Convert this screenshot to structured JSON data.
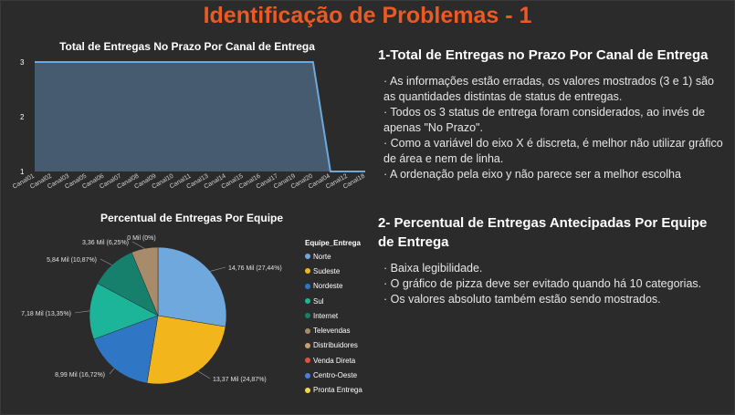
{
  "header": {
    "title": "Identificação de Problemas - 1"
  },
  "charts": {
    "area_title": "Total de Entregas No Prazo Por Canal de Entrega",
    "pie_title": "Percentual de Entregas Por Equipe"
  },
  "chart_data": [
    {
      "type": "area",
      "title": "Total de Entregas No Prazo Por Canal de Entrega",
      "categories": [
        "Canal01",
        "Canal02",
        "Canal03",
        "Canal05",
        "Canal06",
        "Canal07",
        "Canal08",
        "Canal09",
        "Canal10",
        "Canal11",
        "Canal13",
        "Canal14",
        "Canal15",
        "Canal16",
        "Canal17",
        "Canal19",
        "Canal20",
        "Canal04",
        "Canal12",
        "Canal18"
      ],
      "values": [
        3,
        3,
        3,
        3,
        3,
        3,
        3,
        3,
        3,
        3,
        3,
        3,
        3,
        3,
        3,
        3,
        3,
        1,
        1,
        1
      ],
      "yticks": [
        1,
        2,
        3
      ],
      "ylim": [
        1,
        3
      ],
      "color": "#4a6178"
    },
    {
      "type": "pie",
      "title": "Percentual de Entregas Por Equipe",
      "legend_title": "Equipe_Entrega",
      "slices": [
        {
          "name": "Norte",
          "value": 14.76,
          "label": "14,76 Mil (27,44%)",
          "color": "#6fa8dc"
        },
        {
          "name": "Sudeste",
          "value": 13.37,
          "label": "13,37 Mil (24,87%)",
          "color": "#f2b51b"
        },
        {
          "name": "Nordeste",
          "value": 8.99,
          "label": "8,99 Mil (16,72%)",
          "color": "#2f77c4"
        },
        {
          "name": "Sul",
          "value": 7.18,
          "label": "7,18 Mil (13,35%)",
          "color": "#1cb59a"
        },
        {
          "name": "Internet",
          "value": 5.84,
          "label": "5,84 Mil (10,87%)",
          "color": "#16806d"
        },
        {
          "name": "Televendas",
          "value": 3.36,
          "label": "3,36 Mil (6,25%)",
          "color": "#a88b6a"
        },
        {
          "name": "Distribuidores",
          "value": 0.0,
          "label": "0 Mil (0%)",
          "color": "#c8a070"
        },
        {
          "name": "Venda Direta",
          "value": 0.0,
          "label": "",
          "color": "#e0523f"
        },
        {
          "name": "Centro-Oeste",
          "value": 0.0,
          "label": "",
          "color": "#4c7de0"
        },
        {
          "name": "Pronta Entrega",
          "value": 0.0,
          "label": "",
          "color": "#f5d64a"
        }
      ]
    }
  ],
  "section1": {
    "heading": "1-Total de Entregas no Prazo Por Canal de Entrega",
    "bullets": [
      "· As informações estão erradas, os valores mostrados (3 e 1) são as quantidades distintas de status de entregas.",
      "· Todos os 3 status de entrega foram considerados, ao invés de apenas \"No Prazo\".",
      "· Como a variável do eixo X é discreta, é melhor não utilizar gráfico de área e nem de linha.",
      "· A ordenação pela eixo y não parece ser a melhor escolha"
    ]
  },
  "section2": {
    "heading": "2- Percentual de Entregas Antecipadas Por Equipe de Entrega",
    "bullets": [
      "· Baixa legibilidade.",
      "· O gráfico de pizza deve ser evitado quando há 10 categorias.",
      "· Os valores absoluto também estão sendo mostrados."
    ]
  }
}
